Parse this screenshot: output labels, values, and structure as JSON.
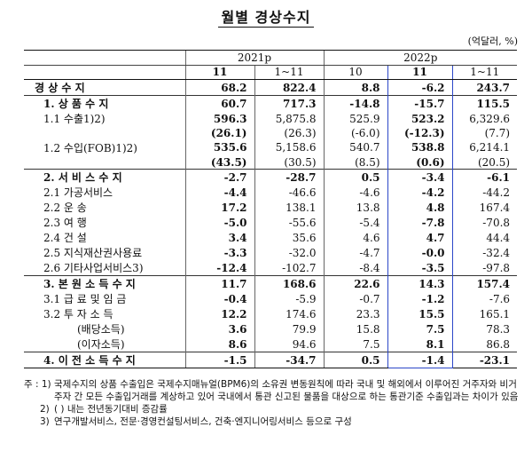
{
  "title": "월별 경상수지",
  "unit": "(억달러, %)",
  "headers": {
    "y2021": "2021p",
    "y2022": "2022p",
    "c1": "11",
    "c2": "1~11",
    "c3": "10",
    "c4": "11",
    "c5": "1~11"
  },
  "rows": [
    {
      "label": "경  상  수  지",
      "v": [
        "68.2",
        "822.4",
        "8.8",
        "-6.2",
        "243.7"
      ]
    },
    {
      "label": "1. 상 품 수 지",
      "v": [
        "60.7",
        "717.3",
        "-14.8",
        "-15.7",
        "115.5"
      ]
    },
    {
      "label": "1.1 수출1)2)",
      "v": [
        "596.3",
        "5,875.8",
        "525.9",
        "523.2",
        "6,329.6"
      ]
    },
    {
      "label": "",
      "v": [
        "(26.1)",
        "(26.3)",
        "(-6.0)",
        "(-12.3)",
        "(7.7)"
      ]
    },
    {
      "label": "1.2 수입(FOB)1)2)",
      "v": [
        "535.6",
        "5,158.6",
        "540.7",
        "538.8",
        "6,214.1"
      ]
    },
    {
      "label": "",
      "v": [
        "(43.5)",
        "(30.5)",
        "(8.5)",
        "(0.6)",
        "(20.5)"
      ]
    },
    {
      "label": "2. 서 비 스 수 지",
      "v": [
        "-2.7",
        "-28.7",
        "0.5",
        "-3.4",
        "-6.1"
      ]
    },
    {
      "label": "2.1 가공서비스",
      "v": [
        "-4.4",
        "-46.6",
        "-4.6",
        "-4.2",
        "-44.2"
      ]
    },
    {
      "label": "2.2 운          송",
      "v": [
        "17.2",
        "138.1",
        "13.8",
        "4.8",
        "167.4"
      ]
    },
    {
      "label": "2.3 여          행",
      "v": [
        "-5.0",
        "-55.6",
        "-5.4",
        "-7.8",
        "-70.8"
      ]
    },
    {
      "label": "2.4 건          설",
      "v": [
        "3.4",
        "35.6",
        "4.6",
        "4.7",
        "44.4"
      ]
    },
    {
      "label": "2.5 지식재산권사용료",
      "v": [
        "-3.3",
        "-32.0",
        "-4.7",
        "-0.0",
        "-32.4"
      ]
    },
    {
      "label": "2.6 기타사업서비스3)",
      "v": [
        "-12.4",
        "-102.7",
        "-8.4",
        "-3.5",
        "-97.8"
      ]
    },
    {
      "label": "3. 본 원 소 득 수 지",
      "v": [
        "11.7",
        "168.6",
        "22.6",
        "14.3",
        "157.4"
      ]
    },
    {
      "label": "3.1 급 료 및 임 금",
      "v": [
        "-0.4",
        "-5.9",
        "-0.7",
        "-1.2",
        "-7.6"
      ]
    },
    {
      "label": "3.2 투  자  소  득",
      "v": [
        "12.2",
        "174.6",
        "23.3",
        "15.5",
        "165.1"
      ]
    },
    {
      "label": "(배당소득)",
      "v": [
        "3.6",
        "79.9",
        "15.8",
        "7.5",
        "78.3"
      ]
    },
    {
      "label": "(이자소득)",
      "v": [
        "8.6",
        "94.6",
        "7.5",
        "8.1",
        "86.8"
      ]
    },
    {
      "label": "4. 이 전 소 득 수 지",
      "v": [
        "-1.5",
        "-34.7",
        "0.5",
        "-1.4",
        "-23.1"
      ]
    }
  ],
  "notes": {
    "prefix": "주 : 1)",
    "n1": "국제수지의 상품 수출입은 국제수지매뉴얼(BPM6)의 소유권 변동원칙에 따라 국내 및 해외에서 이루어진 거주자와 비거주자 간 모든 수출입거래를 계상하고 있어 국내에서 통관 신고된 물품을 대상으로 하는 통관기준 수출입과는 차이가 있음",
    "n2_mark": "2)",
    "n2": "( ) 내는 전년동기대비 증감률",
    "n3_mark": "3)",
    "n3": "연구개발서비스, 전문·경영컨설팅서비스, 건축·엔지니어링서비스 등으로 구성"
  }
}
